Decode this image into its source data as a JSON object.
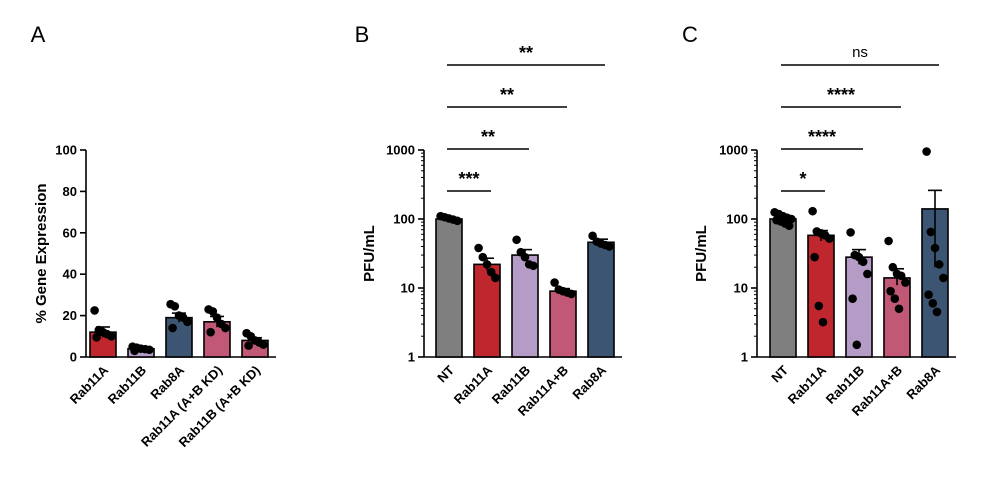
{
  "palette": {
    "NT": "#7f7f7f",
    "Rab11A": "#c0262e",
    "Rab11B": "#b59cc6",
    "Rab11A+B": "#c05876",
    "Rab8A": "#3b5573",
    "Rab11A (A+B KD)": "#c05876",
    "Rab11B (A+B KD)": "#c05876"
  },
  "chart_data": [
    {
      "panel_label": "A",
      "type": "bar",
      "scale": "linear",
      "ylabel": "% Gene Expression",
      "ylim": [
        0,
        100
      ],
      "yticks": [
        "0",
        "20",
        "40",
        "60",
        "80",
        "100"
      ],
      "ytick_values": [
        0,
        20,
        40,
        60,
        80,
        100
      ],
      "categories": [
        "Rab11A",
        "Rab11B",
        "Rab8A",
        "Rab11A (A+B KD)",
        "Rab11B (A+B KD)"
      ],
      "values": [
        12,
        4,
        19,
        17,
        8
      ],
      "error": [
        2.5,
        0.6,
        2.2,
        2.6,
        1.3
      ],
      "points": [
        [
          22.5,
          13,
          12,
          11,
          10,
          9.5
        ],
        [
          5,
          4.5,
          4,
          3.8,
          3.5,
          3
        ],
        [
          25.5,
          24.5,
          20,
          19,
          17,
          14
        ],
        [
          23,
          22,
          19,
          16,
          14,
          12
        ],
        [
          11.5,
          10,
          8,
          7,
          6,
          5.5
        ]
      ],
      "significance": []
    },
    {
      "panel_label": "B",
      "type": "bar",
      "scale": "log",
      "ylabel": "PFU/mL",
      "ylim": [
        1,
        1000
      ],
      "yticks": [
        "1",
        "10",
        "100",
        "1000"
      ],
      "ytick_values": [
        1,
        10,
        100,
        1000
      ],
      "categories": [
        "NT",
        "Rab11A",
        "Rab11B",
        "Rab11A+B",
        "Rab8A"
      ],
      "values": [
        100,
        22,
        30,
        9,
        46
      ],
      "error": [
        [
          98,
          102
        ],
        [
          18,
          27
        ],
        [
          25,
          36
        ],
        [
          8.3,
          9.8
        ],
        [
          41,
          51
        ]
      ],
      "points": [
        [
          110,
          106,
          102,
          98,
          94
        ],
        [
          38,
          28,
          22,
          17,
          14
        ],
        [
          50,
          33,
          28,
          22,
          21
        ],
        [
          12,
          9.5,
          9,
          8.6,
          8.2
        ],
        [
          57,
          47,
          44,
          42,
          40
        ]
      ],
      "significance": [
        {
          "from": "NT",
          "to": "Rab11A",
          "label": "***"
        },
        {
          "from": "NT",
          "to": "Rab11B",
          "label": "**"
        },
        {
          "from": "NT",
          "to": "Rab11A+B",
          "label": "**"
        },
        {
          "from": "NT",
          "to": "Rab8A",
          "label": "**"
        }
      ]
    },
    {
      "panel_label": "C",
      "type": "bar",
      "scale": "log",
      "ylabel": "PFU/mL",
      "ylim": [
        1,
        1000
      ],
      "yticks": [
        "1",
        "10",
        "100",
        "1000"
      ],
      "ytick_values": [
        1,
        10,
        100,
        1000
      ],
      "categories": [
        "NT",
        "Rab11A",
        "Rab11B",
        "Rab11A+B",
        "Rab8A"
      ],
      "values": [
        100,
        58,
        28,
        14,
        140
      ],
      "error": [
        [
          90,
          110
        ],
        [
          48,
          68
        ],
        [
          22,
          36
        ],
        [
          11,
          19
        ],
        [
          20,
          260
        ]
      ],
      "points": [
        [
          125,
          118,
          110,
          104,
          100,
          96,
          92,
          86,
          80
        ],
        [
          130,
          66,
          62,
          58,
          52,
          28,
          5.5,
          3.2
        ],
        [
          64,
          30,
          28,
          24,
          16,
          7,
          1.5
        ],
        [
          48,
          20,
          16,
          15,
          12,
          9,
          7,
          5
        ],
        [
          950,
          65,
          38,
          22,
          14,
          8,
          6,
          4.5
        ]
      ],
      "significance": [
        {
          "from": "NT",
          "to": "Rab11A",
          "label": "*"
        },
        {
          "from": "NT",
          "to": "Rab11B",
          "label": "****"
        },
        {
          "from": "NT",
          "to": "Rab11A+B",
          "label": "****"
        },
        {
          "from": "NT",
          "to": "Rab8A",
          "label": "ns"
        }
      ]
    }
  ]
}
